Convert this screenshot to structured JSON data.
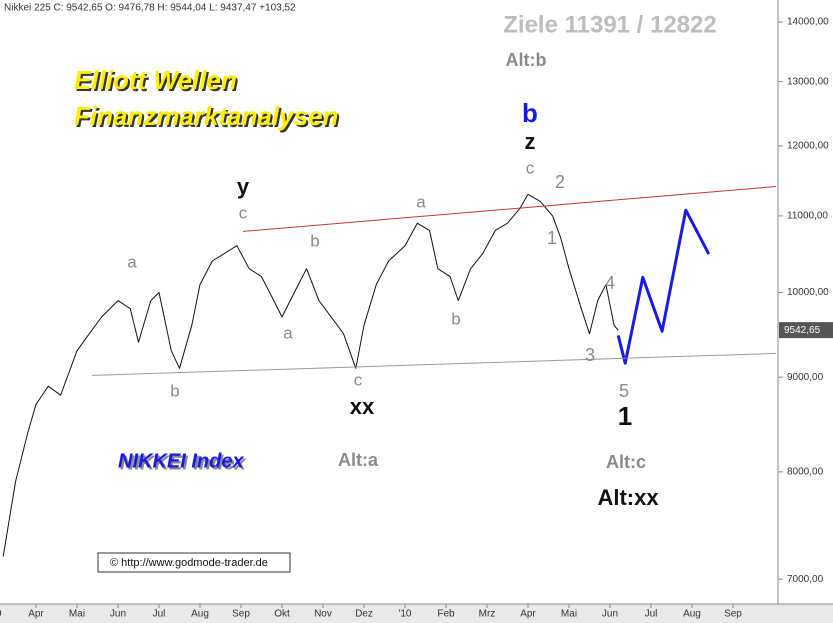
{
  "chart_data": {
    "type": "line",
    "header": "Nikkei 225 C: 9542,65 O: 9476,78 H: 9544,04 L: 9437,47 +103,52",
    "log_scale": true,
    "xlim": [
      0.122,
      19.098
    ],
    "ylim": [
      6770,
      14390
    ],
    "xticks": [
      {
        "value": 0,
        "label": "'09"
      },
      {
        "value": 1,
        "label": "Apr"
      },
      {
        "value": 2,
        "label": "Mai"
      },
      {
        "value": 3,
        "label": "Jun"
      },
      {
        "value": 4,
        "label": "Jul"
      },
      {
        "value": 5,
        "label": "Aug"
      },
      {
        "value": 6,
        "label": "Sep"
      },
      {
        "value": 7,
        "label": "Okt"
      },
      {
        "value": 8,
        "label": "Nov"
      },
      {
        "value": 9,
        "label": "Dez"
      },
      {
        "value": 10,
        "label": "'10"
      },
      {
        "value": 11,
        "label": "Feb"
      },
      {
        "value": 12,
        "label": "Mrz"
      },
      {
        "value": 13,
        "label": "Apr"
      },
      {
        "value": 14,
        "label": "Mai"
      },
      {
        "value": 15,
        "label": "Jun"
      },
      {
        "value": 16,
        "label": "Jul"
      },
      {
        "value": 17,
        "label": "Aug"
      },
      {
        "value": 18,
        "label": "Sep"
      }
    ],
    "yticks": [
      {
        "value": 7000,
        "label": "7000,00"
      },
      {
        "value": 8000,
        "label": "8000,00"
      },
      {
        "value": 9000,
        "label": "9000,00"
      },
      {
        "value": 10000,
        "label": "10000,00"
      },
      {
        "value": 11000,
        "label": "11000,00"
      },
      {
        "value": 12000,
        "label": "12000,00"
      },
      {
        "value": 13000,
        "label": "13000,00"
      },
      {
        "value": 14000,
        "label": "14000,00"
      }
    ],
    "last_price": {
      "value": 9542.65,
      "label": "9542,65"
    },
    "series": [
      {
        "name": "Nikkei 225",
        "color": "#111111",
        "x": [
          0.2,
          0.5,
          0.8,
          1.0,
          1.3,
          1.6,
          2.0,
          2.3,
          2.6,
          3.0,
          3.3,
          3.5,
          3.8,
          4.0,
          4.3,
          4.5,
          4.8,
          5.0,
          5.3,
          5.6,
          5.9,
          6.2,
          6.5,
          6.8,
          7.0,
          7.3,
          7.6,
          7.9,
          8.2,
          8.5,
          8.8,
          9.0,
          9.3,
          9.6,
          10.0,
          10.3,
          10.6,
          10.8,
          11.1,
          11.3,
          11.6,
          11.9,
          12.2,
          12.5,
          12.8,
          13.0,
          13.3,
          13.6,
          13.8,
          14.0,
          14.3,
          14.5,
          14.7,
          14.9,
          15.1,
          15.2
        ],
        "values": [
          7200,
          7900,
          8400,
          8700,
          8900,
          8800,
          9300,
          9500,
          9700,
          9900,
          9800,
          9400,
          9900,
          10000,
          9300,
          9100,
          9600,
          10100,
          10400,
          10500,
          10600,
          10300,
          10200,
          9900,
          9700,
          10000,
          10300,
          9900,
          9700,
          9500,
          9100,
          9600,
          10100,
          10400,
          10600,
          10900,
          10800,
          10300,
          10200,
          9900,
          10300,
          10500,
          10800,
          10900,
          11100,
          11300,
          11200,
          11000,
          10700,
          10300,
          9800,
          9500,
          9900,
          10100,
          9600,
          9540
        ]
      },
      {
        "name": "Prognose",
        "color": "#1a1ae6",
        "x": [
          15.2,
          15.37,
          15.8,
          16.27,
          16.85,
          17.41
        ],
        "values": [
          9480,
          9158,
          10190,
          9530,
          11080,
          10490
        ]
      },
      {
        "name": "Widerstand",
        "color": "#c0392b",
        "x": [
          6.05,
          19.05
        ],
        "values": [
          10790,
          11410
        ]
      },
      {
        "name": "Unterstützung",
        "color": "#999999",
        "x": [
          2.37,
          19.05
        ],
        "values": [
          9020,
          9270
        ]
      }
    ],
    "annotations": [
      "Ziele 11391 / 12822",
      "Alt:b",
      "Elliott Wellen",
      "Finanzmarktanalysen",
      "NIKKEI Index",
      "Alt:a",
      "Alt:c",
      "Alt:xx",
      "© http://www.godmode-trader.de",
      "a",
      "b",
      "c",
      "y",
      "a",
      "b",
      "c",
      "xx",
      "a",
      "b",
      "c",
      "z",
      "b",
      "2",
      "1",
      "4",
      "3",
      "5",
      "1"
    ]
  }
}
